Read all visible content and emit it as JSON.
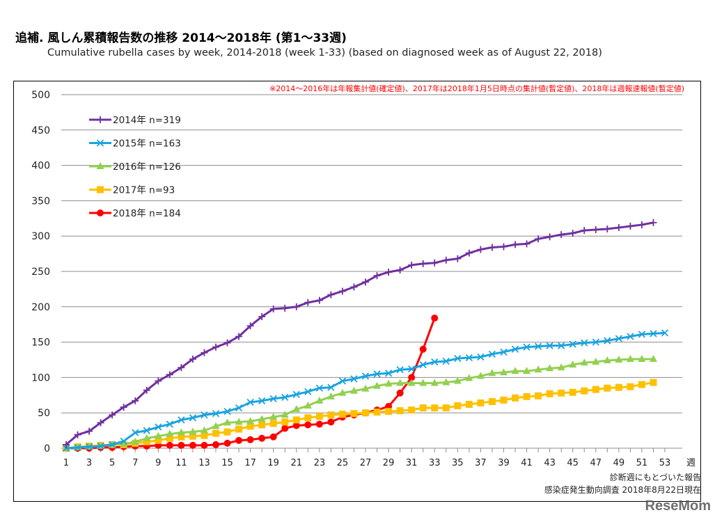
{
  "chart_data": {
    "type": "line",
    "title": "追補. 風しん累積報告数の推移  2014～2018年 (第1～33週)",
    "subtitle": "Cumulative rubella cases by week, 2014-2018 (week 1-33)  (based on diagnosed week as of August 22, 2018)",
    "note": "※2014～2016年は年報集計値(確定値)、2017年は2018年1月5日時点の集計値(暫定値)、2018年は週報速報値(暫定値)",
    "xlabel": "週",
    "ylim": [
      0,
      500
    ],
    "yticks": [
      0,
      50,
      100,
      150,
      200,
      250,
      300,
      350,
      400,
      450,
      500
    ],
    "xlim": [
      1,
      53
    ],
    "xticks": [
      1,
      3,
      5,
      7,
      9,
      11,
      13,
      15,
      17,
      19,
      21,
      23,
      25,
      27,
      29,
      31,
      33,
      35,
      37,
      39,
      41,
      43,
      45,
      47,
      49,
      51,
      53
    ],
    "grid": "horizontal",
    "legend_position": "top-left",
    "source_line1": "診断週にもとづいた報告",
    "source_line2": "感染症発生動向調査 2018年8月22日現在",
    "watermark": "ReseMom",
    "series": [
      {
        "name": "2014年 n=319",
        "color": "#7030A0",
        "marker": "plus",
        "values": [
          5,
          19,
          24,
          36,
          47,
          58,
          67,
          82,
          95,
          104,
          114,
          126,
          135,
          143,
          149,
          158,
          173,
          186,
          197,
          198,
          200,
          206,
          209,
          217,
          222,
          228,
          235,
          244,
          249,
          252,
          259,
          261,
          262,
          266,
          268,
          276,
          281,
          284,
          285,
          288,
          289,
          296,
          299,
          302,
          304,
          308,
          309,
          310,
          312,
          314,
          316,
          319
        ]
      },
      {
        "name": "2015年 n=163",
        "color": "#1AA3E0",
        "marker": "x",
        "values": [
          0,
          1,
          2,
          3,
          5,
          10,
          22,
          25,
          30,
          34,
          40,
          43,
          47,
          49,
          52,
          57,
          65,
          67,
          70,
          72,
          76,
          80,
          85,
          86,
          95,
          98,
          102,
          105,
          106,
          111,
          112,
          118,
          122,
          123,
          127,
          128,
          129,
          133,
          136,
          140,
          143,
          144,
          145,
          145,
          147,
          149,
          150,
          152,
          155,
          158,
          161,
          162,
          163
        ]
      },
      {
        "name": "2016年 n=126",
        "color": "#92D050",
        "marker": "triangle",
        "values": [
          0,
          1,
          2,
          3,
          5,
          6,
          9,
          14,
          17,
          20,
          22,
          23,
          25,
          31,
          36,
          37,
          38,
          41,
          44,
          47,
          55,
          60,
          67,
          73,
          78,
          81,
          84,
          88,
          91,
          92,
          92,
          92,
          92,
          93,
          95,
          99,
          102,
          106,
          107,
          109,
          109,
          111,
          113,
          114,
          118,
          121,
          122,
          124,
          125,
          126,
          126,
          126
        ]
      },
      {
        "name": "2017年 n=93",
        "color": "#FFC000",
        "marker": "square",
        "values": [
          0,
          2,
          3,
          4,
          5,
          5,
          7,
          9,
          11,
          14,
          16,
          17,
          18,
          21,
          23,
          27,
          31,
          33,
          35,
          37,
          40,
          43,
          45,
          47,
          48,
          49,
          50,
          51,
          52,
          53,
          54,
          57,
          57,
          57,
          60,
          62,
          64,
          66,
          68,
          71,
          73,
          74,
          77,
          78,
          79,
          81,
          83,
          85,
          86,
          87,
          90,
          93
        ]
      },
      {
        "name": "2018年 n=184",
        "color": "#FF0000",
        "marker": "circle",
        "values": [
          0,
          0,
          0,
          1,
          1,
          2,
          3,
          3,
          4,
          4,
          4,
          4,
          4,
          5,
          7,
          11,
          12,
          14,
          16,
          28,
          32,
          33,
          34,
          37,
          44,
          47,
          50,
          54,
          59,
          78,
          100,
          140,
          184
        ]
      }
    ]
  }
}
